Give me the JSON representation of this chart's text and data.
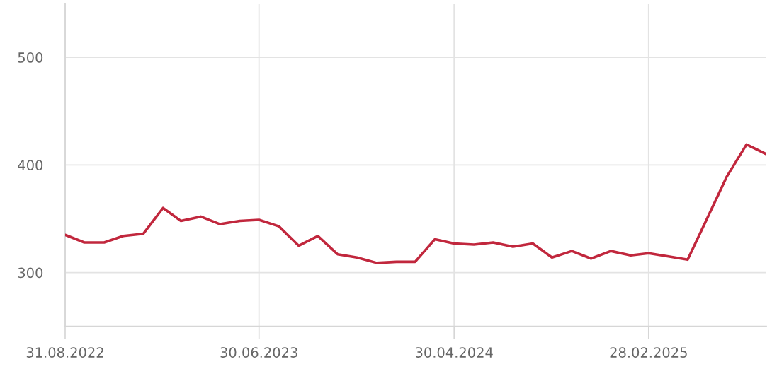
{
  "chart_data": {
    "type": "line",
    "x": [
      "2022-08-31",
      "2022-09-30",
      "2022-10-31",
      "2022-11-30",
      "2022-12-31",
      "2023-01-31",
      "2023-02-28",
      "2023-03-31",
      "2023-04-30",
      "2023-05-31",
      "2023-06-30",
      "2023-07-31",
      "2023-08-31",
      "2023-09-30",
      "2023-10-31",
      "2023-11-30",
      "2023-12-31",
      "2024-01-31",
      "2024-02-29",
      "2024-03-31",
      "2024-04-30",
      "2024-05-31",
      "2024-06-30",
      "2024-07-31",
      "2024-08-31",
      "2024-09-30",
      "2024-10-31",
      "2024-11-30",
      "2024-12-31",
      "2025-01-31",
      "2025-02-28",
      "2025-03-31",
      "2025-04-30",
      "2025-05-31",
      "2025-06-30",
      "2025-07-31",
      "2025-08-31"
    ],
    "series": [
      {
        "color": "#c1273d",
        "values": [
          335,
          328,
          328,
          334,
          336,
          360,
          348,
          352,
          345,
          348,
          349,
          343,
          325,
          334,
          317,
          314,
          309,
          310,
          310,
          331,
          327,
          326,
          328,
          324,
          327,
          314,
          320,
          313,
          320,
          316,
          318,
          315,
          312,
          351,
          389,
          419,
          410
        ]
      }
    ],
    "xlim": [
      "2022-08-31",
      "2025-08-31"
    ],
    "xticks": [
      {
        "value": "2022-08-31",
        "label": "31.08.2022"
      },
      {
        "value": "2023-06-30",
        "label": "30.06.2023"
      },
      {
        "value": "2024-04-30",
        "label": "30.04.2024"
      },
      {
        "value": "2025-02-28",
        "label": "28.02.2025"
      }
    ],
    "ylim": [
      250,
      550
    ],
    "yticks": [
      300,
      400,
      500
    ],
    "grid": true
  }
}
